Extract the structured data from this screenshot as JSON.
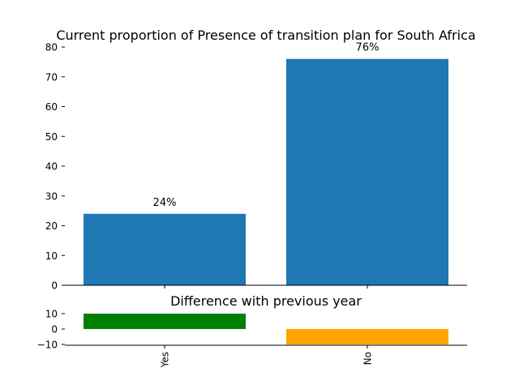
{
  "chart_data": [
    {
      "type": "bar",
      "title": "Current proportion of Presence of transition plan for South Africa",
      "categories": [
        "Yes",
        "No"
      ],
      "values": [
        24,
        76
      ],
      "data_labels": [
        "24%",
        "76%"
      ],
      "ylim": [
        0,
        80
      ],
      "yticks": [
        0,
        10,
        20,
        30,
        40,
        50,
        60,
        70,
        80
      ],
      "color": "#1f77b4",
      "grid": false,
      "legend": "none"
    },
    {
      "type": "bar",
      "title": "Difference with previous year",
      "categories": [
        "Yes",
        "No"
      ],
      "values": [
        10,
        -10
      ],
      "colors": [
        "#008000",
        "#ffa500"
      ],
      "ylim": [
        -10,
        10
      ],
      "yticks": [
        -10,
        0,
        10
      ],
      "ytick_labels": [
        "−10",
        "0",
        "10"
      ],
      "grid": false,
      "legend": "none"
    }
  ]
}
